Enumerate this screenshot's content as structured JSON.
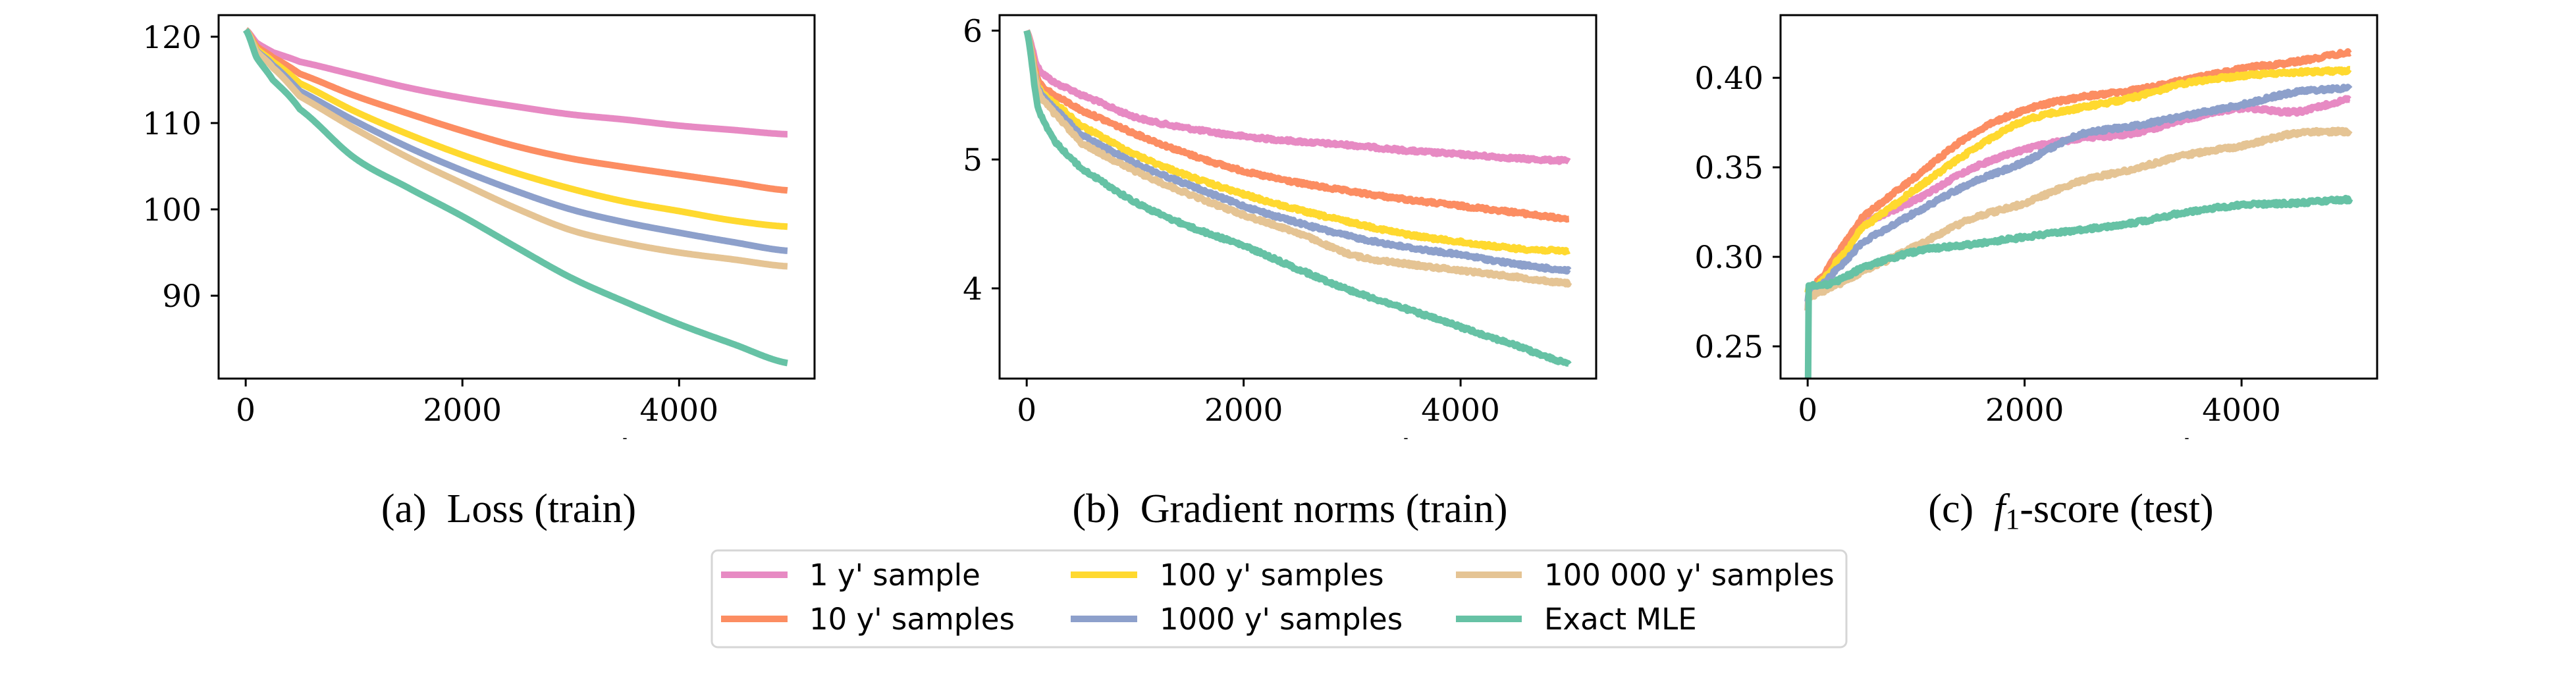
{
  "figure": {
    "legend": {
      "placement": "bottom-center",
      "columns": 3,
      "entries": [
        {
          "label": "1 y' sample",
          "color": "#e78ac3"
        },
        {
          "label": "10 y' samples",
          "color": "#fc8d62"
        },
        {
          "label": "100 y' samples",
          "color": "#ffd92f"
        },
        {
          "label": "1000 y' samples",
          "color": "#8da0cb"
        },
        {
          "label": "100 000 y' samples",
          "color": "#e5c494"
        },
        {
          "label": "Exact MLE",
          "color": "#66c2a5"
        }
      ]
    }
  },
  "chart_data": [
    {
      "type": "line",
      "panel": "(a)",
      "title": "(a) Loss (train)",
      "caption": {
        "label": "(a)",
        "math": "",
        "sub": "",
        "text": "Loss (train)"
      },
      "xlabel": "-",
      "ylabel": "",
      "xlim": [
        -250,
        5250
      ],
      "ylim": [
        80.4,
        122.5
      ],
      "xticks": [
        0,
        2000,
        4000
      ],
      "xtick_labels": [
        "0",
        "2000",
        "4000"
      ],
      "yticks": [
        90,
        100,
        110,
        120
      ],
      "ytick_labels": [
        "90",
        "100",
        "110",
        "120"
      ],
      "grid": false,
      "x": [
        0,
        100,
        250,
        500,
        1000,
        1500,
        2000,
        2500,
        3000,
        3500,
        4000,
        4500,
        5000
      ],
      "series": [
        {
          "name": "1 y' sample",
          "color": "#e78ac3",
          "values": [
            120.8,
            119.3,
            118.2,
            117.1,
            115.6,
            114.1,
            112.9,
            111.9,
            111.0,
            110.4,
            109.7,
            109.2,
            108.7
          ]
        },
        {
          "name": "10 y' samples",
          "color": "#fc8d62",
          "values": [
            120.8,
            118.9,
            117.6,
            115.7,
            113.2,
            111.1,
            109.1,
            107.3,
            105.9,
            104.9,
            104.0,
            103.1,
            102.2
          ]
        },
        {
          "name": "100 y' samples",
          "color": "#ffd92f",
          "values": [
            120.8,
            118.6,
            117.1,
            114.6,
            111.4,
            108.7,
            106.3,
            104.2,
            102.4,
            100.9,
            99.8,
            98.7,
            98.0
          ]
        },
        {
          "name": "1000 y' samples",
          "color": "#8da0cb",
          "values": [
            120.8,
            118.4,
            116.7,
            113.7,
            110.3,
            107.2,
            104.5,
            102.1,
            100.0,
            98.5,
            97.3,
            96.2,
            95.2
          ]
        },
        {
          "name": "100 000 y' samples",
          "color": "#e5c494",
          "values": [
            120.8,
            118.3,
            116.4,
            113.1,
            109.4,
            106.0,
            103.0,
            100.1,
            97.6,
            96.1,
            95.0,
            94.2,
            93.4
          ]
        },
        {
          "name": "Exact MLE",
          "color": "#66c2a5",
          "values": [
            120.8,
            117.6,
            115.0,
            111.6,
            106.0,
            102.5,
            99.2,
            95.6,
            92.1,
            89.3,
            86.7,
            84.4,
            82.2
          ]
        }
      ]
    },
    {
      "type": "line",
      "panel": "(b)",
      "title": "(b) Gradient norms (train)",
      "caption": {
        "label": "(b)",
        "math": "",
        "sub": "",
        "text": "Gradient norms (train)"
      },
      "xlabel": "-",
      "ylabel": "",
      "xlim": [
        -250,
        5250
      ],
      "ylim": [
        3.3,
        6.12
      ],
      "xticks": [
        0,
        2000,
        4000
      ],
      "xtick_labels": [
        "0",
        "2000",
        "4000"
      ],
      "yticks": [
        4,
        5,
        6
      ],
      "ytick_labels": [
        "4",
        "5",
        "6"
      ],
      "grid": false,
      "x": [
        0,
        100,
        250,
        500,
        1000,
        1500,
        2000,
        2500,
        3000,
        3500,
        4000,
        4500,
        5000
      ],
      "series": [
        {
          "name": "1 y' sample",
          "color": "#e78ac3",
          "values": [
            6.0,
            5.72,
            5.6,
            5.5,
            5.33,
            5.24,
            5.18,
            5.14,
            5.11,
            5.07,
            5.04,
            5.01,
            4.99
          ]
        },
        {
          "name": "10 y' samples",
          "color": "#fc8d62",
          "values": [
            6.0,
            5.62,
            5.5,
            5.38,
            5.2,
            5.04,
            4.91,
            4.82,
            4.75,
            4.69,
            4.64,
            4.59,
            4.54
          ]
        },
        {
          "name": "100 y' samples",
          "color": "#ffd92f",
          "values": [
            6.0,
            5.58,
            5.44,
            5.26,
            5.04,
            4.87,
            4.73,
            4.61,
            4.51,
            4.42,
            4.36,
            4.31,
            4.29
          ]
        },
        {
          "name": "1000 y' samples",
          "color": "#8da0cb",
          "values": [
            6.0,
            5.56,
            5.4,
            5.19,
            4.97,
            4.8,
            4.64,
            4.51,
            4.4,
            4.32,
            4.26,
            4.19,
            4.14
          ]
        },
        {
          "name": "100 000 y' samples",
          "color": "#e5c494",
          "values": [
            6.0,
            5.54,
            5.36,
            5.13,
            4.91,
            4.73,
            4.57,
            4.43,
            4.26,
            4.19,
            4.14,
            4.09,
            4.04
          ]
        },
        {
          "name": "Exact MLE",
          "color": "#66c2a5",
          "values": [
            6.0,
            5.42,
            5.15,
            4.93,
            4.67,
            4.48,
            4.33,
            4.15,
            3.98,
            3.84,
            3.7,
            3.56,
            3.42
          ]
        }
      ]
    },
    {
      "type": "line",
      "panel": "(c)",
      "title": "(c) f1-score (test)",
      "caption": {
        "label": "(c)",
        "math": "f",
        "sub": "1",
        "text": "-score (test)"
      },
      "xlabel": "-",
      "ylabel": "",
      "xlim": [
        -250,
        5250
      ],
      "ylim": [
        0.232,
        0.435
      ],
      "xticks": [
        0,
        2000,
        4000
      ],
      "xtick_labels": [
        "0",
        "2000",
        "4000"
      ],
      "yticks": [
        0.25,
        0.3,
        0.35,
        0.4
      ],
      "ytick_labels": [
        "0.25",
        "0.30",
        "0.35",
        "0.40"
      ],
      "grid": false,
      "x": [
        0,
        20,
        100,
        250,
        500,
        1000,
        1500,
        2000,
        2500,
        3000,
        3500,
        4000,
        4500,
        5000
      ],
      "series": [
        {
          "name": "1 y' sample",
          "color": "#e78ac3",
          "values": [
            0.27,
            0.281,
            0.285,
            0.3,
            0.318,
            0.332,
            0.349,
            0.36,
            0.366,
            0.369,
            0.377,
            0.383,
            0.381,
            0.388
          ]
        },
        {
          "name": "10 y' samples",
          "color": "#fc8d62",
          "values": [
            0.28,
            0.282,
            0.287,
            0.3,
            0.322,
            0.345,
            0.368,
            0.382,
            0.389,
            0.393,
            0.399,
            0.405,
            0.409,
            0.414
          ]
        },
        {
          "name": "100 y' samples",
          "color": "#ffd92f",
          "values": [
            0.28,
            0.283,
            0.285,
            0.296,
            0.316,
            0.338,
            0.359,
            0.376,
            0.383,
            0.389,
            0.397,
            0.401,
            0.403,
            0.404
          ]
        },
        {
          "name": "1000 y' samples",
          "color": "#8da0cb",
          "values": [
            0.275,
            0.28,
            0.283,
            0.292,
            0.308,
            0.325,
            0.341,
            0.353,
            0.368,
            0.373,
            0.379,
            0.385,
            0.392,
            0.394
          ]
        },
        {
          "name": "100 000 y' samples",
          "color": "#e5c494",
          "values": [
            0.27,
            0.277,
            0.28,
            0.284,
            0.292,
            0.306,
            0.321,
            0.33,
            0.342,
            0.349,
            0.357,
            0.362,
            0.369,
            0.37
          ]
        },
        {
          "name": "Exact MLE",
          "color": "#66c2a5",
          "values": [
            0.2,
            0.284,
            0.284,
            0.286,
            0.294,
            0.303,
            0.307,
            0.311,
            0.315,
            0.319,
            0.325,
            0.329,
            0.33,
            0.332
          ]
        }
      ]
    }
  ]
}
